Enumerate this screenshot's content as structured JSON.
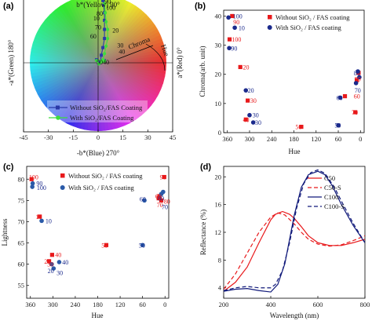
{
  "colors": {
    "red": "#e8191b",
    "blue": "#1b2a8c",
    "panel_a_blue": "#2a3aa8",
    "panel_a_green": "#3ddc3d",
    "dark_blue": "#10197a",
    "axis": "#000000"
  },
  "panels": {
    "a": "(a)",
    "b": "(b)",
    "c": "(c)",
    "d": "(d)"
  },
  "chart_data": [
    {
      "panel": "a",
      "type": "scatter",
      "top_label": "b*(Yellow) 90°",
      "bottom_label": "-b*(Blue) 270°",
      "left_label": "-a*(Green) 180°",
      "right_label": "a*(Red) 0°",
      "curve_labels": [
        "Chroma",
        "Hue"
      ],
      "xlim": [
        -45,
        45
      ],
      "ylim": [
        -45,
        45
      ],
      "ticks": [
        -45,
        -30,
        -15,
        0,
        15,
        30,
        45
      ],
      "tick_labels": [
        "-45",
        "-30",
        "-15",
        "0",
        "15",
        "30",
        "45"
      ],
      "series": [
        {
          "name": "Without SiO₂/FAS Coating",
          "marker": "square",
          "points": [
            {
              "x": 3,
              "y": 41
            },
            {
              "x": 3.5,
              "y": 38
            },
            {
              "x": 4,
              "y": 33
            },
            {
              "x": 4,
              "y": 28
            },
            {
              "x": 4,
              "y": 22
            },
            {
              "x": 4,
              "y": 16
            },
            {
              "x": 3,
              "y": 10
            },
            {
              "x": 2,
              "y": 5
            },
            {
              "x": 1.5,
              "y": 1
            },
            {
              "x": -1,
              "y": 2
            },
            {
              "x": 0.5,
              "y": -0.5
            },
            {
              "x": 1.5,
              "y": 0.5
            },
            {
              "x": 2.5,
              "y": 1
            },
            {
              "x": 4,
              "y": 1.5
            }
          ]
        },
        {
          "name": "With SiO₂/FAS Coating",
          "marker": "circle",
          "points": [
            {
              "x": 4,
              "y": 39
            },
            {
              "x": 4.5,
              "y": 33
            },
            {
              "x": 5,
              "y": 27
            },
            {
              "x": 6,
              "y": 22
            },
            {
              "x": 6,
              "y": 16
            },
            {
              "x": 5,
              "y": 11
            },
            {
              "x": 4,
              "y": 6
            },
            {
              "x": 3,
              "y": 2
            },
            {
              "x": -1,
              "y": 1.5
            },
            {
              "x": 0.5,
              "y": -0.8
            },
            {
              "x": 2,
              "y": 0.5
            },
            {
              "x": 3,
              "y": 1
            },
            {
              "x": 4,
              "y": 1.2
            }
          ]
        }
      ],
      "point_labels": [
        {
          "t": "90",
          "x": 4,
          "y": 39
        },
        {
          "t": "100",
          "x": 5,
          "y": 35
        },
        {
          "t": "80",
          "x": -1,
          "y": 31
        },
        {
          "t": "70",
          "x": -2,
          "y": 22
        },
        {
          "t": "10",
          "x": -3,
          "y": 28
        },
        {
          "t": "20",
          "x": 9,
          "y": 20
        },
        {
          "t": "30",
          "x": 12,
          "y": 10
        },
        {
          "t": "40",
          "x": 13,
          "y": 6
        },
        {
          "t": "60",
          "x": -5,
          "y": 16
        },
        {
          "t": "50",
          "x": -1,
          "y": -1
        },
        {
          "t": "40",
          "x": 3,
          "y": -1
        }
      ]
    },
    {
      "panel": "b",
      "type": "scatter",
      "xlabel": "Hue",
      "ylabel": "Chroma(arb. unit)",
      "xlim": [
        370,
        -10
      ],
      "ylim": [
        0,
        42
      ],
      "xticks": [
        360,
        300,
        240,
        180,
        120,
        60,
        0
      ],
      "yticks": [
        0,
        10,
        20,
        30,
        40
      ],
      "series": [
        {
          "name": "Without SiO₂ / FAS coating",
          "marker": "square",
          "points": [
            {
              "x": 347,
              "y": 40
            },
            {
              "x": 354,
              "y": 32
            },
            {
              "x": 325,
              "y": 22.5
            },
            {
              "x": 305,
              "y": 11
            },
            {
              "x": 310,
              "y": 4.5
            },
            {
              "x": 160,
              "y": 2
            },
            {
              "x": 5,
              "y": 20.5
            },
            {
              "x": 10,
              "y": 18
            },
            {
              "x": 14,
              "y": 7
            },
            {
              "x": 42,
              "y": 12.5
            }
          ]
        },
        {
          "name": "With SiO₂ / FAS coating",
          "marker": "circle",
          "points": [
            {
              "x": 357,
              "y": 39.5
            },
            {
              "x": 340,
              "y": 36
            },
            {
              "x": 355,
              "y": 29
            },
            {
              "x": 310,
              "y": 14.5
            },
            {
              "x": 300,
              "y": 6
            },
            {
              "x": 290,
              "y": 3.5
            },
            {
              "x": 60,
              "y": 2.5
            },
            {
              "x": 7,
              "y": 21
            },
            {
              "x": 12,
              "y": 17
            },
            {
              "x": 55,
              "y": 12
            },
            {
              "x": 3,
              "y": 19
            }
          ]
        }
      ],
      "point_labels": [
        {
          "t": "100",
          "x": 345,
          "y": 40,
          "c": "blue"
        },
        {
          "t": "90",
          "x": 344,
          "y": 38,
          "c": "red"
        },
        {
          "t": "10",
          "x": 330,
          "y": 36,
          "c": "blue"
        },
        {
          "t": "100",
          "x": 348,
          "y": 32,
          "c": "red"
        },
        {
          "t": "90",
          "x": 350,
          "y": 29,
          "c": "blue"
        },
        {
          "t": "20",
          "x": 318,
          "y": 22.5,
          "c": "red"
        },
        {
          "t": "20",
          "x": 305,
          "y": 14.5,
          "c": "blue"
        },
        {
          "t": "30",
          "x": 298,
          "y": 11,
          "c": "red"
        },
        {
          "t": "40",
          "x": 318,
          "y": 4.5,
          "c": "red"
        },
        {
          "t": "30",
          "x": 292,
          "y": 6,
          "c": "blue"
        },
        {
          "t": "30",
          "x": 285,
          "y": 3.5,
          "c": "blue"
        },
        {
          "t": "50",
          "x": 176,
          "y": 2,
          "c": "red"
        },
        {
          "t": "50",
          "x": 70,
          "y": 2.5,
          "c": "blue"
        },
        {
          "t": "60",
          "x": 65,
          "y": 12,
          "c": "blue"
        },
        {
          "t": "70",
          "x": 16,
          "y": 14.5,
          "c": "blue"
        },
        {
          "t": "60",
          "x": 18,
          "y": 12.5,
          "c": "red"
        },
        {
          "t": "80",
          "x": 18,
          "y": 20.5,
          "c": "blue"
        },
        {
          "t": "90",
          "x": 16,
          "y": 18.5,
          "c": "red"
        },
        {
          "t": "70",
          "x": 24,
          "y": 7,
          "c": "red"
        }
      ]
    },
    {
      "panel": "c",
      "type": "scatter",
      "xlabel": "Hue",
      "ylabel": "Lightness",
      "xlim": [
        370,
        -10
      ],
      "ylim": [
        52,
        83
      ],
      "xticks": [
        360,
        300,
        240,
        180,
        120,
        60,
        0
      ],
      "yticks": [
        55,
        60,
        65,
        70,
        75,
        80
      ],
      "series": [
        {
          "name": "Without SiO₂ / FAS coating",
          "marker": "square",
          "points": [
            {
              "x": 357,
              "y": 80
            },
            {
              "x": 335,
              "y": 71.2
            },
            {
              "x": 302,
              "y": 62.2
            },
            {
              "x": 310,
              "y": 60.7
            },
            {
              "x": 157,
              "y": 64.5
            },
            {
              "x": 17,
              "y": 75.5
            },
            {
              "x": 10,
              "y": 75.0
            },
            {
              "x": 2,
              "y": 80.5
            },
            {
              "x": 15,
              "y": 76.0
            }
          ]
        },
        {
          "name": "With SiO₂ / FAS coating",
          "marker": "circle",
          "points": [
            {
              "x": 354,
              "y": 79.0
            },
            {
              "x": 330,
              "y": 70.2
            },
            {
              "x": 355,
              "y": 78.2
            },
            {
              "x": 303,
              "y": 60.0
            },
            {
              "x": 298,
              "y": 59.0
            },
            {
              "x": 283,
              "y": 60.5
            },
            {
              "x": 60,
              "y": 64.5
            },
            {
              "x": 55,
              "y": 75.0
            },
            {
              "x": 5,
              "y": 77.0
            },
            {
              "x": 10,
              "y": 76.5
            }
          ]
        }
      ],
      "point_labels": [
        {
          "t": "100",
          "x": 364,
          "y": 80.5,
          "c": "red"
        },
        {
          "t": "90",
          "x": 344,
          "y": 79.0,
          "c": "blue"
        },
        {
          "t": "100",
          "x": 343,
          "y": 78.0,
          "c": "blue"
        },
        {
          "t": "10",
          "x": 346,
          "y": 71.2,
          "c": "red"
        },
        {
          "t": "10",
          "x": 320,
          "y": 70.2,
          "c": "blue"
        },
        {
          "t": "40",
          "x": 294,
          "y": 62.2,
          "c": "red"
        },
        {
          "t": "20",
          "x": 323,
          "y": 60.7,
          "c": "red"
        },
        {
          "t": "30",
          "x": 315,
          "y": 60.0,
          "c": "red"
        },
        {
          "t": "20",
          "x": 314,
          "y": 58.5,
          "c": "blue"
        },
        {
          "t": "40",
          "x": 275,
          "y": 60.5,
          "c": "blue"
        },
        {
          "t": "30",
          "x": 290,
          "y": 58.0,
          "c": "blue"
        },
        {
          "t": "50",
          "x": 170,
          "y": 64.5,
          "c": "red"
        },
        {
          "t": "50",
          "x": 70,
          "y": 64.5,
          "c": "blue"
        },
        {
          "t": "60",
          "x": 68,
          "y": 75.3,
          "c": "blue"
        },
        {
          "t": "60",
          "x": 26,
          "y": 76.0,
          "c": "red"
        },
        {
          "t": "80",
          "x": 19,
          "y": 75.5,
          "c": "blue"
        },
        {
          "t": "70",
          "x": 22,
          "y": 74.0,
          "c": "red"
        },
        {
          "t": "70",
          "x": 9,
          "y": 73.5,
          "c": "blue"
        },
        {
          "t": "90",
          "x": 14,
          "y": 80.5,
          "c": "red"
        },
        {
          "t": "80",
          "x": 3,
          "y": 74.8,
          "c": "red"
        }
      ]
    },
    {
      "panel": "d",
      "type": "line",
      "xlabel": "Wavelength (nm)",
      "ylabel": "Reflectance (%)",
      "xlim": [
        200,
        800
      ],
      "ylim": [
        2.5,
        21.5
      ],
      "xticks": [
        200,
        400,
        600,
        800
      ],
      "yticks": [
        4,
        8,
        12,
        16,
        20
      ],
      "series": [
        {
          "name": "C50",
          "style": "solid",
          "color": "red",
          "x": [
            200,
            250,
            300,
            350,
            400,
            420,
            450,
            480,
            500,
            530,
            560,
            600,
            650,
            700,
            750,
            800
          ],
          "y": [
            3.5,
            4.8,
            7.0,
            10.5,
            13.8,
            14.6,
            15.0,
            14.6,
            14.0,
            12.8,
            11.5,
            10.5,
            10.1,
            10.1,
            10.5,
            11.0
          ]
        },
        {
          "name": "C50-S",
          "style": "dashed",
          "color": "red",
          "x": [
            200,
            250,
            300,
            350,
            400,
            430,
            460,
            500,
            530,
            560,
            600,
            650,
            700,
            750,
            800
          ],
          "y": [
            3.8,
            6.0,
            9.0,
            12.0,
            14.2,
            14.8,
            14.5,
            13.2,
            12.0,
            11.0,
            10.3,
            10.0,
            10.2,
            10.8,
            11.5
          ]
        },
        {
          "name": "C100",
          "style": "solid",
          "color": "darkblue",
          "x": [
            200,
            250,
            300,
            350,
            400,
            430,
            460,
            480,
            500,
            530,
            560,
            600,
            630,
            660,
            700,
            750,
            800
          ],
          "y": [
            3.5,
            3.8,
            3.9,
            3.6,
            3.4,
            4.5,
            7.5,
            11.0,
            14.5,
            18.5,
            20.3,
            20.8,
            20.3,
            18.8,
            16.0,
            13.0,
            10.5
          ]
        },
        {
          "name": "C100-S",
          "style": "dashed",
          "color": "darkblue",
          "x": [
            200,
            250,
            300,
            350,
            400,
            420,
            450,
            480,
            510,
            540,
            570,
            600,
            630,
            670,
            700,
            750,
            800
          ],
          "y": [
            3.6,
            4.0,
            4.2,
            4.0,
            4.0,
            4.5,
            6.5,
            10.5,
            15.5,
            19.0,
            20.6,
            21.0,
            20.5,
            18.5,
            16.5,
            13.3,
            10.5
          ]
        }
      ]
    }
  ]
}
